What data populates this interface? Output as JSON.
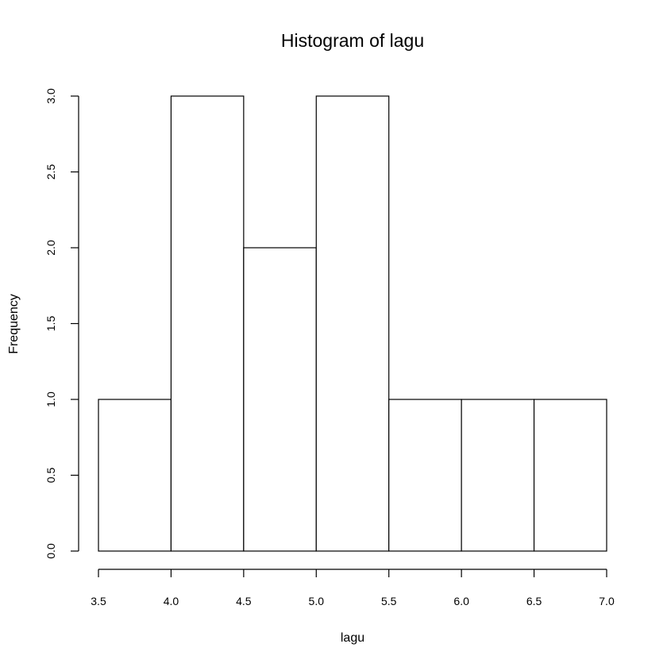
{
  "chart_data": {
    "type": "bar",
    "title": "Histogram of lagu",
    "xlabel": "lagu",
    "ylabel": "Frequency",
    "bins": [
      {
        "start": 3.5,
        "end": 4.0,
        "count": 1
      },
      {
        "start": 4.0,
        "end": 4.5,
        "count": 3
      },
      {
        "start": 4.5,
        "end": 5.0,
        "count": 2
      },
      {
        "start": 5.0,
        "end": 5.5,
        "count": 3
      },
      {
        "start": 5.5,
        "end": 6.0,
        "count": 1
      },
      {
        "start": 6.0,
        "end": 6.5,
        "count": 1
      },
      {
        "start": 6.5,
        "end": 7.0,
        "count": 1
      }
    ],
    "xlim": [
      3.5,
      7.0
    ],
    "ylim": [
      0,
      3.0
    ],
    "xticks": [
      "3.5",
      "4.0",
      "4.5",
      "5.0",
      "5.5",
      "6.0",
      "6.5",
      "7.0"
    ],
    "yticks": [
      "0.0",
      "0.5",
      "1.0",
      "1.5",
      "2.0",
      "2.5",
      "3.0"
    ],
    "bar_fill": "#ffffff",
    "bar_stroke": "#000000",
    "grid": false
  }
}
